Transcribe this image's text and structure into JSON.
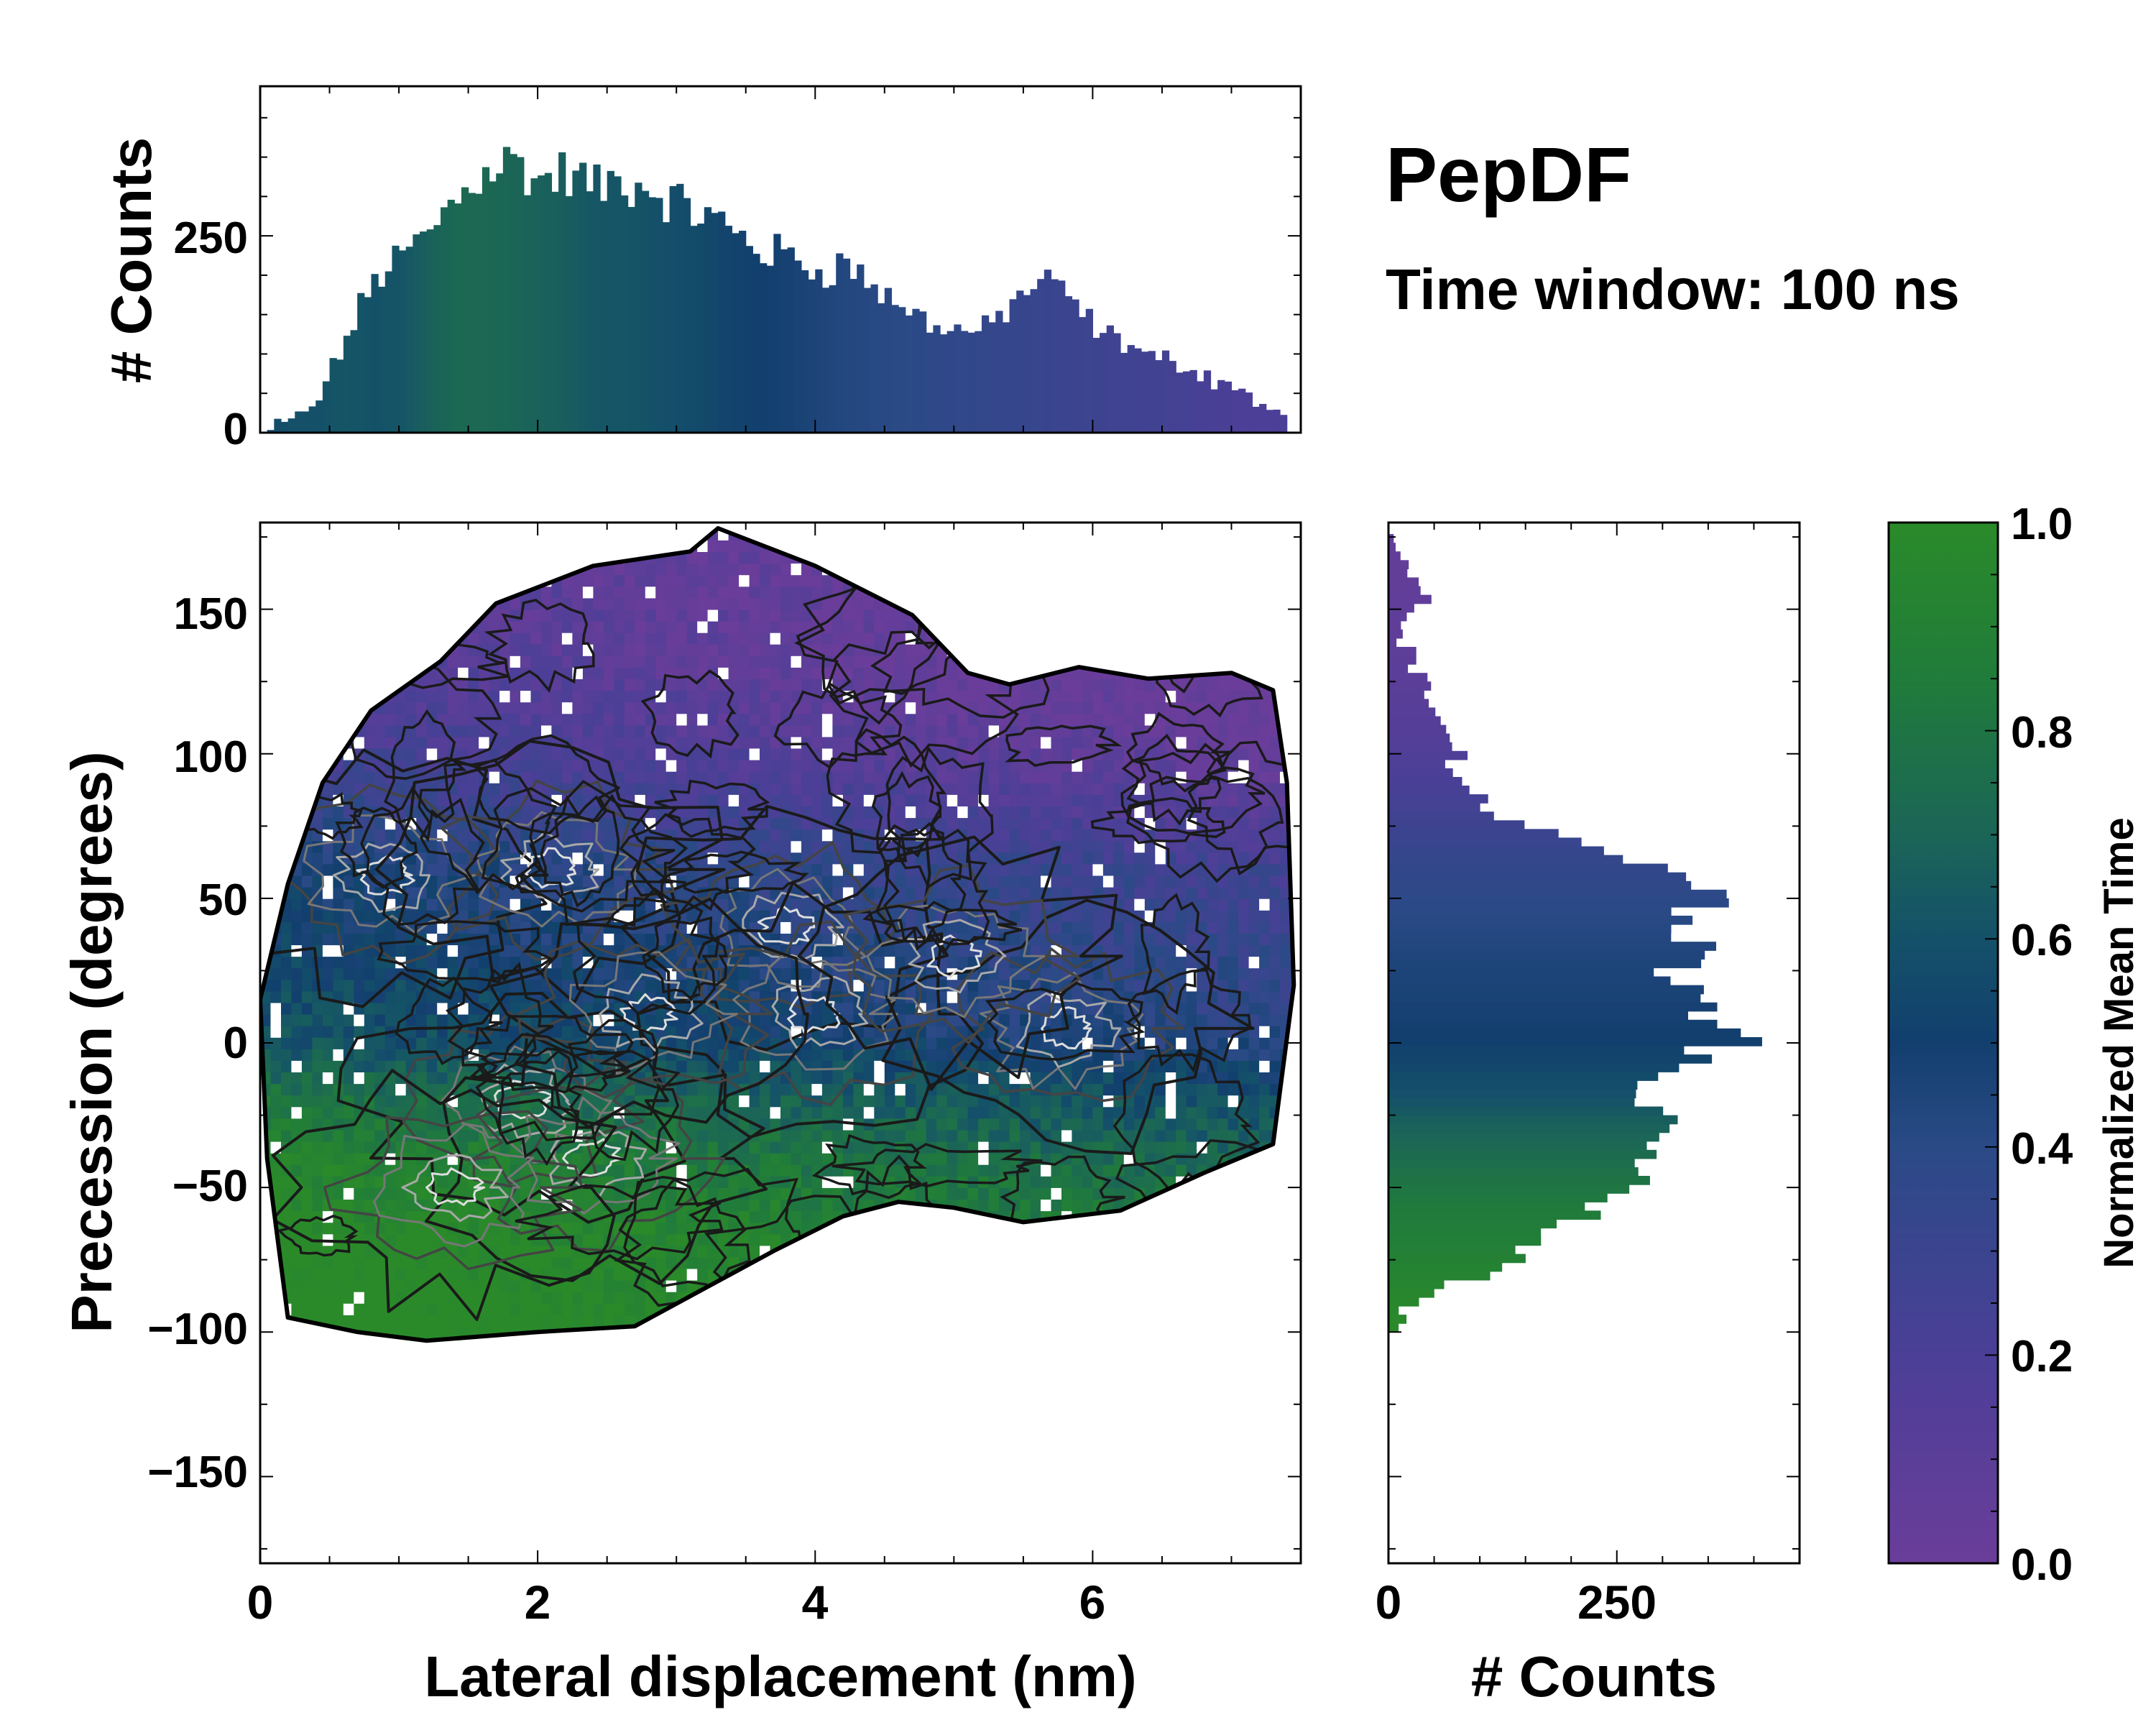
{
  "title": "PepDF",
  "subtitle": "Time window: 100 ns",
  "chart_data": [
    {
      "panel": "top-histogram",
      "type": "bar",
      "ylabel": "# Counts",
      "xlim": [
        0,
        7.5
      ],
      "ylim": [
        0,
        440
      ],
      "y_ticks": [
        "0",
        "250"
      ],
      "y_tick_values": [
        0,
        250
      ],
      "bin_width": 0.05,
      "color_by": "normalized mean time",
      "profile_x": [
        0.0,
        0.2,
        0.4,
        0.6,
        0.8,
        1.0,
        1.2,
        1.4,
        1.6,
        1.8,
        2.0,
        2.2,
        2.4,
        2.6,
        2.8,
        3.0,
        3.2,
        3.4,
        3.6,
        3.8,
        4.0,
        4.2,
        4.4,
        4.6,
        4.8,
        5.0,
        5.2,
        5.4,
        5.6,
        5.8,
        6.0,
        6.2,
        6.4,
        6.6,
        6.8,
        7.0,
        7.2,
        7.4
      ],
      "profile_counts": [
        5,
        12,
        45,
        120,
        195,
        225,
        255,
        300,
        335,
        345,
        320,
        330,
        310,
        320,
        310,
        290,
        275,
        255,
        230,
        225,
        205,
        215,
        185,
        160,
        140,
        130,
        130,
        165,
        195,
        175,
        130,
        115,
        95,
        90,
        70,
        60,
        35,
        10
      ],
      "profile_time": [
        0.55,
        0.6,
        0.6,
        0.62,
        0.6,
        0.62,
        0.68,
        0.72,
        0.72,
        0.7,
        0.68,
        0.66,
        0.62,
        0.62,
        0.6,
        0.58,
        0.55,
        0.52,
        0.5,
        0.48,
        0.45,
        0.43,
        0.41,
        0.4,
        0.38,
        0.36,
        0.34,
        0.33,
        0.32,
        0.3,
        0.28,
        0.27,
        0.26,
        0.24,
        0.22,
        0.2,
        0.2,
        0.2
      ]
    },
    {
      "panel": "main-2d-histogram",
      "type": "heatmap",
      "xlabel": "Lateral displacement (nm)",
      "ylabel": "Precession (degrees)",
      "xlim": [
        0,
        7.5
      ],
      "ylim": [
        -180,
        180
      ],
      "x_ticks": [
        "0",
        "2",
        "4",
        "6"
      ],
      "x_tick_values": [
        0,
        2,
        4,
        6
      ],
      "y_ticks": [
        "150",
        "100",
        "50",
        "0",
        "−50",
        "−100",
        "−150"
      ],
      "y_tick_values": [
        150,
        100,
        50,
        0,
        -50,
        -100,
        -150
      ],
      "color_by": "normalized mean time",
      "occupied_region_outline": [
        [
          0.2,
          -95
        ],
        [
          0.05,
          -40
        ],
        [
          0.0,
          15
        ],
        [
          0.2,
          55
        ],
        [
          0.45,
          90
        ],
        [
          0.8,
          115
        ],
        [
          1.3,
          132
        ],
        [
          1.7,
          152
        ],
        [
          2.4,
          165
        ],
        [
          3.1,
          170
        ],
        [
          3.3,
          178
        ],
        [
          4.0,
          165
        ],
        [
          4.7,
          148
        ],
        [
          5.1,
          128
        ],
        [
          5.4,
          124
        ],
        [
          5.9,
          130
        ],
        [
          6.4,
          126
        ],
        [
          7.0,
          128
        ],
        [
          7.3,
          122
        ],
        [
          7.4,
          90
        ],
        [
          7.45,
          20
        ],
        [
          7.3,
          -35
        ],
        [
          6.8,
          -45
        ],
        [
          6.2,
          -58
        ],
        [
          5.5,
          -62
        ],
        [
          5.0,
          -57
        ],
        [
          4.6,
          -55
        ],
        [
          4.2,
          -60
        ],
        [
          3.7,
          -72
        ],
        [
          3.2,
          -85
        ],
        [
          2.7,
          -98
        ],
        [
          2.0,
          -100
        ],
        [
          1.2,
          -103
        ],
        [
          0.7,
          -100
        ]
      ],
      "time_vs_precession_anchors": [
        [
          -100,
          1.0
        ],
        [
          -70,
          0.95
        ],
        [
          -45,
          0.85
        ],
        [
          -20,
          0.7
        ],
        [
          0,
          0.52
        ],
        [
          20,
          0.48
        ],
        [
          40,
          0.42
        ],
        [
          60,
          0.38
        ],
        [
          80,
          0.25
        ],
        [
          100,
          0.15
        ],
        [
          130,
          0.08
        ],
        [
          175,
          0.05
        ]
      ],
      "density_hotspots": [
        [
          0.9,
          58
        ],
        [
          2.1,
          60
        ],
        [
          1.9,
          -20
        ],
        [
          3.8,
          40
        ],
        [
          4.0,
          10
        ],
        [
          2.4,
          -40
        ],
        [
          5.8,
          5
        ],
        [
          2.8,
          10
        ],
        [
          1.4,
          -50
        ],
        [
          5.0,
          30
        ]
      ]
    },
    {
      "panel": "right-histogram",
      "type": "bar",
      "orientation": "horizontal",
      "xlabel": "# Counts",
      "xlim": [
        0,
        450
      ],
      "ylim": [
        -180,
        180
      ],
      "x_ticks": [
        "0",
        "250"
      ],
      "x_tick_values": [
        0,
        250
      ],
      "bin_width": 3,
      "color_by": "normalized mean time",
      "profile_precession": [
        -100,
        -90,
        -80,
        -70,
        -60,
        -50,
        -40,
        -30,
        -20,
        -10,
        0,
        10,
        20,
        30,
        40,
        50,
        60,
        70,
        80,
        90,
        100,
        110,
        120,
        130,
        140,
        150,
        160,
        170,
        180
      ],
      "profile_counts": [
        5,
        25,
        115,
        155,
        215,
        270,
        305,
        300,
        265,
        300,
        380,
        335,
        305,
        320,
        330,
        345,
        280,
        180,
        105,
        85,
        70,
        60,
        40,
        25,
        15,
        40,
        30,
        8,
        0
      ],
      "profile_time": [
        1.0,
        0.97,
        0.92,
        0.88,
        0.85,
        0.8,
        0.74,
        0.68,
        0.6,
        0.55,
        0.5,
        0.48,
        0.46,
        0.44,
        0.41,
        0.38,
        0.35,
        0.3,
        0.25,
        0.2,
        0.16,
        0.13,
        0.11,
        0.09,
        0.08,
        0.06,
        0.05,
        0.05,
        0.05
      ]
    },
    {
      "panel": "colorbar",
      "type": "colorbar",
      "label": "Normalized Mean Time",
      "range": [
        0.0,
        1.0
      ],
      "ticks": [
        "0.0",
        "0.2",
        "0.4",
        "0.6",
        "0.8",
        "1.0"
      ],
      "tick_values": [
        0.0,
        0.2,
        0.4,
        0.6,
        0.8,
        1.0
      ],
      "colormap_stops": [
        [
          0.0,
          "#6a3d9a"
        ],
        [
          0.2,
          "#4b3f97"
        ],
        [
          0.4,
          "#2a4a86"
        ],
        [
          0.5,
          "#123f6e"
        ],
        [
          0.6,
          "#145169"
        ],
        [
          0.7,
          "#1b6557"
        ],
        [
          0.85,
          "#207c3a"
        ],
        [
          1.0,
          "#2a8a2a"
        ]
      ]
    }
  ]
}
